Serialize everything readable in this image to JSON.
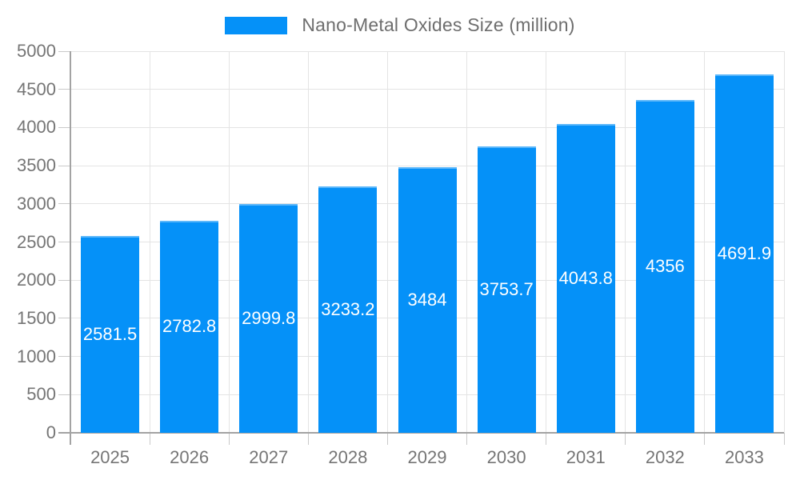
{
  "legend": {
    "label": "Nano-Metal Oxides Size (million)"
  },
  "chart_data": {
    "type": "bar",
    "title": "Nano-Metal Oxides Size (million)",
    "categories": [
      "2025",
      "2026",
      "2027",
      "2028",
      "2029",
      "2030",
      "2031",
      "2032",
      "2033"
    ],
    "values": [
      2581.5,
      2782.8,
      2999.8,
      3233.2,
      3484,
      3753.7,
      4043.8,
      4356,
      4691.9
    ],
    "value_labels": [
      "2581.5",
      "2782.8",
      "2999.8",
      "3233.2",
      "3484",
      "3753.7",
      "4043.8",
      "4356",
      "4691.9"
    ],
    "xlabel": "",
    "ylabel": "",
    "ylim": [
      0,
      5000
    ],
    "yticks": [
      0,
      500,
      1000,
      1500,
      2000,
      2500,
      3000,
      3500,
      4000,
      4500,
      5000
    ],
    "ytick_labels": [
      "0",
      "500",
      "1000",
      "1500",
      "2000",
      "2500",
      "3000",
      "3500",
      "4000",
      "4500",
      "5000"
    ],
    "grid": true,
    "legend_position": "top-center",
    "colors": {
      "bar": "#0591f8",
      "grid": "#e4e4e4",
      "axis": "#a3a3a3",
      "tick": "#c9c9c9",
      "axis_text": "#757575",
      "legend_text": "#6e6e6e",
      "value_text": "#ffffff",
      "background": "#ffffff"
    }
  }
}
